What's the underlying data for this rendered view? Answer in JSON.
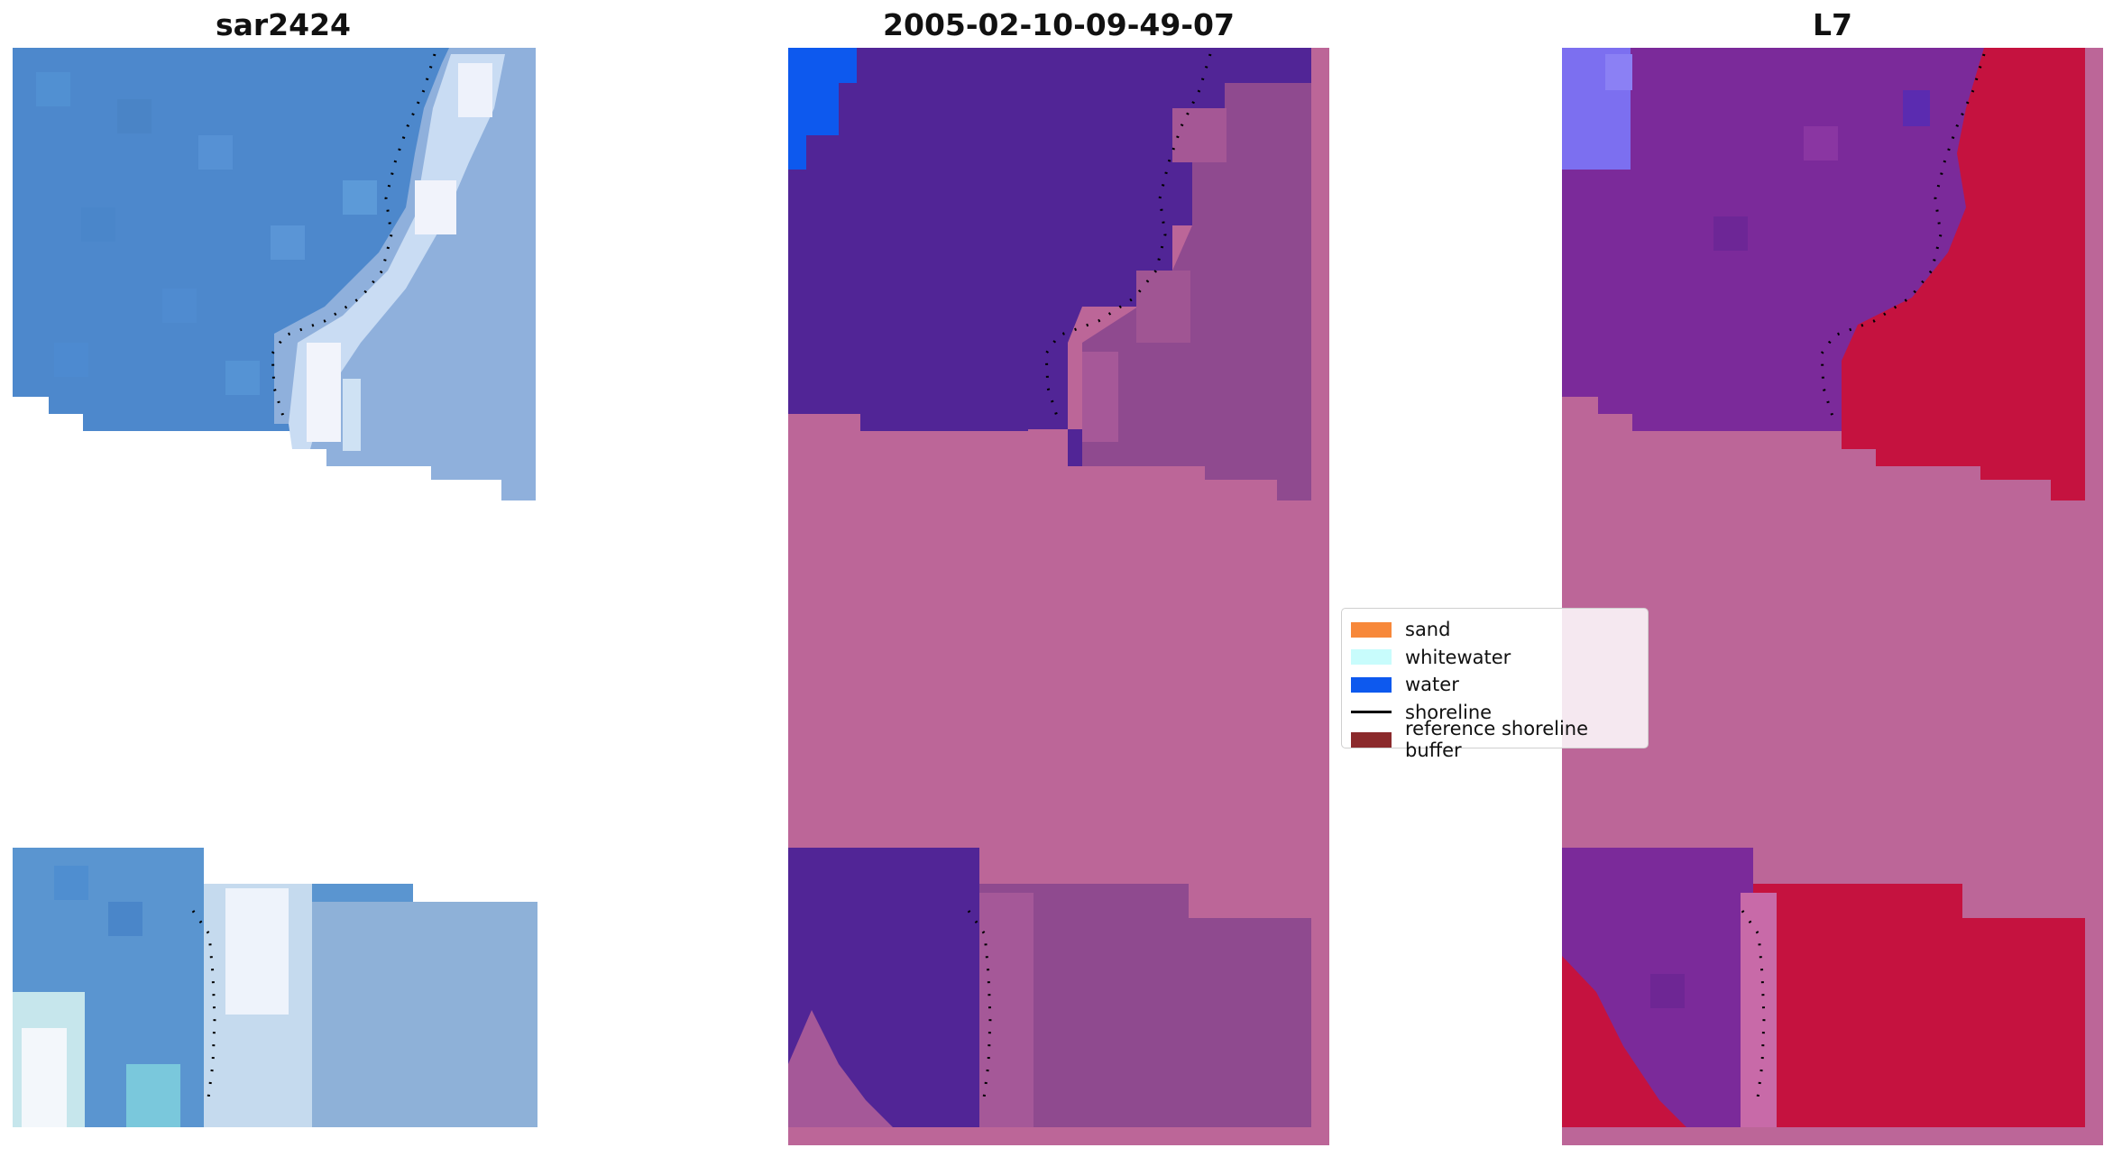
{
  "panels": [
    {
      "title": "sar2424"
    },
    {
      "title": "2005-02-10-09-49-07"
    },
    {
      "title": "L7"
    }
  ],
  "legend": {
    "items": [
      {
        "label": "sand",
        "color": "#f7883a",
        "kind": "patch"
      },
      {
        "label": "whitewater",
        "color": "#c8fcfc",
        "kind": "patch"
      },
      {
        "label": "water",
        "color": "#0d59ee",
        "kind": "patch"
      },
      {
        "label": "shoreline",
        "color": "#000000",
        "kind": "line"
      },
      {
        "label": "reference shoreline buffer",
        "color": "#8b2a2c",
        "kind": "patch"
      }
    ]
  },
  "colors": {
    "rgb_water": "#4d88cc",
    "rgb_surf": "#f0f2fa",
    "class_water": "#512596",
    "class_buffer": "#bc6698",
    "class_land": "#8f4a8f",
    "class_bright_water": "#0d59ee",
    "index_water": "#7b2a9a",
    "index_land": "#c5123f"
  }
}
